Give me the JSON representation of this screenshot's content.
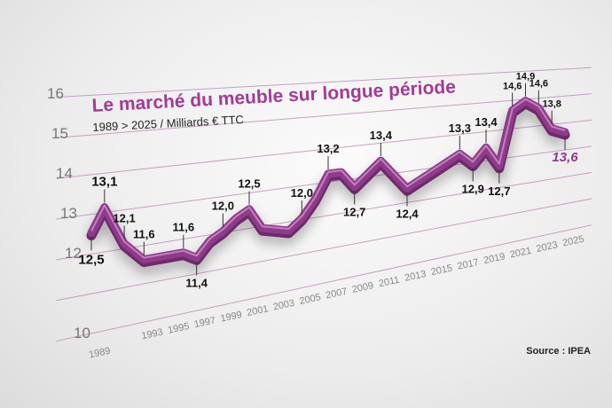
{
  "chart_data": {
    "type": "line",
    "title": "Le marché du meuble sur longue période",
    "subtitle": "1989 > 2025 / Milliards € TTC",
    "xlabel": "",
    "ylabel": "",
    "y_ticks": [
      16,
      15,
      14,
      13,
      12,
      10
    ],
    "ylim": [
      10,
      16
    ],
    "x_ticks": [
      "1989",
      "1993",
      "1995",
      "1997",
      "1999",
      "2001",
      "2003",
      "2005",
      "2007",
      "2009",
      "2011",
      "2013",
      "2015",
      "2017",
      "2019",
      "2021",
      "2023",
      "2025"
    ],
    "xlim": [
      1989,
      2025
    ],
    "grid": true,
    "series": [
      {
        "color": "#8e3c8a",
        "points": [
          {
            "x": 1989,
            "y": 12.5,
            "label": "12,5"
          },
          {
            "x": 1990,
            "y": 13.1,
            "label": "13,1"
          },
          {
            "x": 1991.5,
            "y": 12.1,
            "label": "12,1"
          },
          {
            "x": 1993,
            "y": 11.6,
            "label": "11,6"
          },
          {
            "x": 1996,
            "y": 11.6,
            "label": "11,6"
          },
          {
            "x": 1997,
            "y": 11.4,
            "label": "11,4"
          },
          {
            "x": 1998,
            "y": 11.8,
            "label": ""
          },
          {
            "x": 1999,
            "y": 12.0,
            "label": "12,0"
          },
          {
            "x": 2000,
            "y": 12.3,
            "label": ""
          },
          {
            "x": 2001,
            "y": 12.5,
            "label": "12,5"
          },
          {
            "x": 2002,
            "y": 11.9,
            "label": ""
          },
          {
            "x": 2004,
            "y": 11.7,
            "label": ""
          },
          {
            "x": 2005,
            "y": 12.0,
            "label": "12,0"
          },
          {
            "x": 2006,
            "y": 12.5,
            "label": ""
          },
          {
            "x": 2007,
            "y": 13.2,
            "label": "13,2"
          },
          {
            "x": 2008,
            "y": 13.2,
            "label": ""
          },
          {
            "x": 2009,
            "y": 12.7,
            "label": "12,7"
          },
          {
            "x": 2011,
            "y": 13.4,
            "label": "13,4"
          },
          {
            "x": 2013,
            "y": 12.4,
            "label": "12,4"
          },
          {
            "x": 2017,
            "y": 13.3,
            "label": "13,3"
          },
          {
            "x": 2018,
            "y": 12.9,
            "label": "12,9"
          },
          {
            "x": 2019,
            "y": 13.4,
            "label": "13,4"
          },
          {
            "x": 2020,
            "y": 12.7,
            "label": "12,7"
          },
          {
            "x": 2021,
            "y": 14.6,
            "label": "14,6"
          },
          {
            "x": 2022,
            "y": 14.9,
            "label": "14,9"
          },
          {
            "x": 2023,
            "y": 14.6,
            "label": "14,6"
          },
          {
            "x": 2024,
            "y": 13.8,
            "label": "13,8"
          },
          {
            "x": 2025,
            "y": 13.6,
            "label": "13,6"
          }
        ]
      }
    ],
    "source": "Source : IPEA"
  }
}
